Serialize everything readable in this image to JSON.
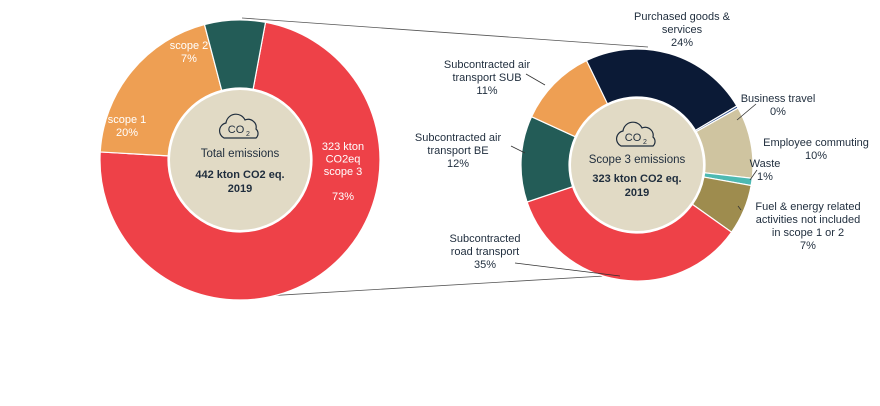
{
  "colors": {
    "scope1": "#EE9F53",
    "scope2": "#235C57",
    "scope3": "#EE4148",
    "purchased": "#0B1A36",
    "business": "#2E4F8A",
    "employee": "#CFC4A0",
    "waste": "#4DB9B2",
    "fuel": "#9E8C4E",
    "road": "#EE4148",
    "air_be": "#235C57",
    "air_sub": "#EE9F53",
    "center": "#E1DAC5",
    "connector": "#555555"
  },
  "icons": {
    "left_center": "co2-cloud-icon",
    "right_center": "co2-cloud-icon"
  },
  "chart_data": [
    {
      "type": "pie",
      "variant": "donut",
      "slices": [
        {
          "key": "scope1",
          "label_lines": [
            "scope 1",
            "20%"
          ],
          "value": 20
        },
        {
          "key": "scope2",
          "label_lines": [
            "scope 2",
            "7%"
          ],
          "value": 7
        },
        {
          "key": "scope3",
          "label_lines": [
            "323 kton",
            "CO2eq",
            "scope 3",
            "",
            "73%"
          ],
          "value": 73
        }
      ],
      "center": {
        "icon_text": "CO",
        "icon_sub": "2",
        "title": "Total emissions",
        "bold_lines": [
          "442 kton CO2 eq.",
          "2019"
        ]
      }
    },
    {
      "type": "pie",
      "variant": "donut",
      "slices": [
        {
          "key": "purchased",
          "label_lines": [
            "Purchased goods &",
            "services",
            "24%"
          ],
          "value": 24
        },
        {
          "key": "business",
          "label_lines": [
            "Business travel",
            "0%"
          ],
          "value": 0
        },
        {
          "key": "employee",
          "label_lines": [
            "Employee commuting",
            "10%"
          ],
          "value": 10
        },
        {
          "key": "waste",
          "label_lines": [
            "Waste",
            "1%"
          ],
          "value": 1
        },
        {
          "key": "fuel",
          "label_lines": [
            "Fuel & energy related",
            "activities not included",
            "in scope 1 or 2",
            "7%"
          ],
          "value": 7
        },
        {
          "key": "road",
          "label_lines": [
            "Subcontracted",
            "road transport",
            "35%"
          ],
          "value": 35
        },
        {
          "key": "air_be",
          "label_lines": [
            "Subcontracted air",
            "transport BE",
            "12%"
          ],
          "value": 12
        },
        {
          "key": "air_sub",
          "label_lines": [
            "Subcontracted air",
            "transport SUB",
            "11%"
          ],
          "value": 11
        }
      ],
      "center": {
        "icon_text": "CO",
        "icon_sub": "2",
        "title": "Scope 3 emissions",
        "bold_lines": [
          "323 kton CO2 eq.",
          "2019"
        ]
      }
    }
  ]
}
